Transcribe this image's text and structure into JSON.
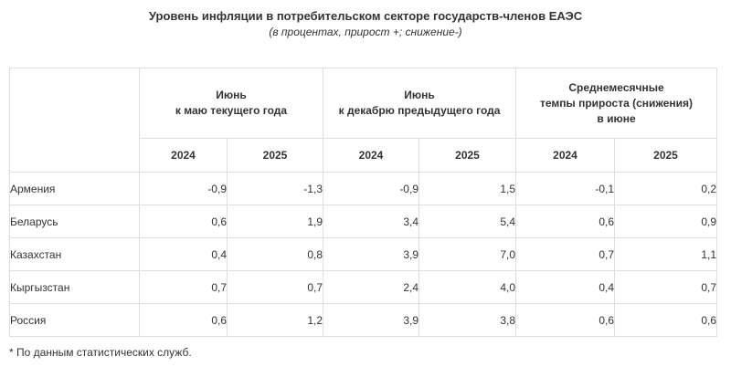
{
  "title": "Уровень инфляции в потребительском секторе государств-членов ЕАЭС",
  "subtitle": "(в процентах, прирост +; снижение-)",
  "headers": {
    "group1": [
      "Июнь",
      "к маю текущего года"
    ],
    "group2": [
      "Июнь",
      "к декабрю предыдущего года"
    ],
    "group3": [
      "Среднемесячные",
      "темпы прироста (снижения)",
      "в июне"
    ],
    "years": [
      "2024",
      "2025",
      "2024",
      "2025",
      "2024",
      "2025"
    ]
  },
  "rows": [
    {
      "country": "Армения",
      "values": [
        "-0,9",
        "-1,3",
        "-0,9",
        "1,5",
        "-0,1",
        "0,2"
      ]
    },
    {
      "country": "Беларусь",
      "values": [
        "0,6",
        "1,9",
        "3,4",
        "5,4",
        "0,6",
        "0,9"
      ]
    },
    {
      "country": "Казахстан",
      "values": [
        "0,4",
        "0,8",
        "3,9",
        "7,0",
        "0,7",
        "1,1"
      ]
    },
    {
      "country": "Кыргызстан",
      "values": [
        "0,7",
        "0,7",
        "2,4",
        "4,0",
        "0,4",
        "0,7"
      ]
    },
    {
      "country": "Россия",
      "values": [
        "0,6",
        "1,2",
        "3,9",
        "3,8",
        "0,6",
        "0,6"
      ]
    }
  ],
  "footnote": "* По данным статистических служб."
}
